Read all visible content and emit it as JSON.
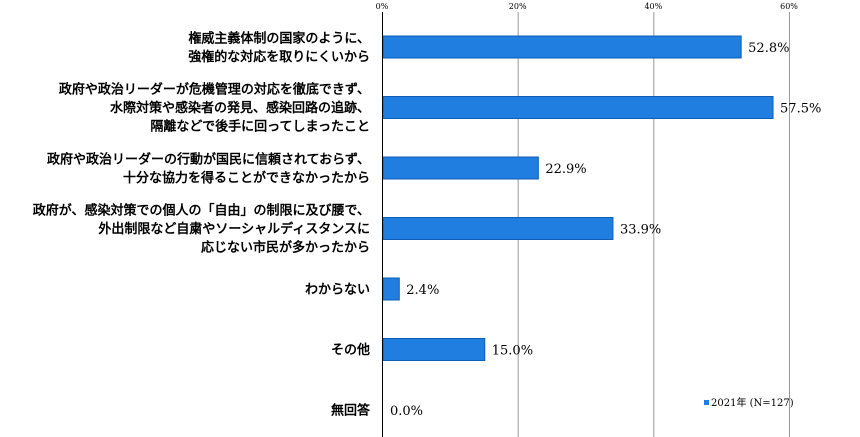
{
  "chart_data": {
    "type": "bar",
    "orientation": "horizontal",
    "categories": [
      [
        "権威主義体制の国家のように、",
        "強権的な対応を取りにくいから"
      ],
      [
        "政府や政治リーダーが危機管理の対応を徹底できず、",
        "水際対策や感染者の発見、感染回路の追跡、",
        "隔離などで後手に回ってしまったこと"
      ],
      [
        "政府や政治リーダーの行動が国民に信頼されておらず、",
        "十分な協力を得ることができなかったから"
      ],
      [
        "政府が、感染対策での個人の「自由」の制限に及び腰で、",
        "外出制限など自粛やソーシャルディスタンスに",
        "応じない市民が多かったから"
      ],
      [
        "わからない"
      ],
      [
        "その他"
      ],
      [
        "無回答"
      ]
    ],
    "series": [
      {
        "name": "2021年 (N=127)",
        "values": [
          52.8,
          57.5,
          22.9,
          33.9,
          2.4,
          15.0,
          0.0
        ],
        "value_labels": [
          "52.8%",
          "57.5%",
          "22.9%",
          "33.9%",
          "2.4%",
          "15.0%",
          "0.0%"
        ]
      }
    ],
    "xlim": [
      0,
      70
    ],
    "xticks": [
      0,
      20,
      40,
      60
    ],
    "xtick_labels": [
      "0%",
      "20%",
      "40%",
      "60%"
    ],
    "grid": true,
    "legend_position": "bottom-right",
    "colors": {
      "bar_fill": "#1f7ee0",
      "bar_stroke": "#0f5fb5",
      "grid": "#9a9a9a",
      "axis": "#000000"
    }
  }
}
